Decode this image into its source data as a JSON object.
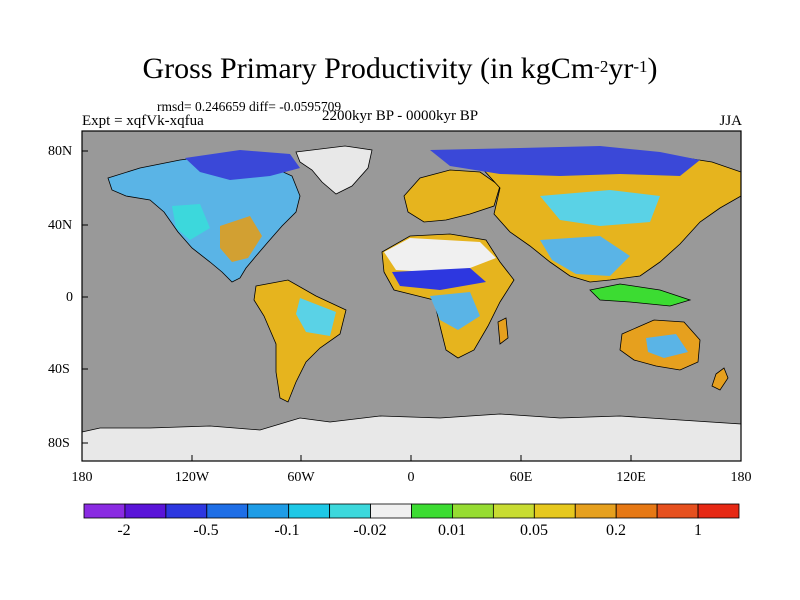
{
  "header": {
    "title_main": "Gross Primary Productivity (in kgCm",
    "title_exp1": "-2",
    "title_mid": "yr",
    "title_exp2": "-1",
    "title_end": ")",
    "stats": "rmsd= 0.246659 diff= -0.0595709",
    "experiment": "Expt = xqfVk-xqfua",
    "period": "2200kyr BP - 0000kyr BP",
    "season": "JJA"
  },
  "axes": {
    "lat_ticks": [
      "80N",
      "40N",
      "0",
      "40S",
      "80S"
    ],
    "lon_ticks": [
      "180",
      "120W",
      "60W",
      "0",
      "60E",
      "120E",
      "180"
    ]
  },
  "colors": {
    "ocean": "#999999",
    "ice": "#e8e8e8",
    "coast": "#000000"
  },
  "colorbar": {
    "colors": [
      "#8a2be2",
      "#5a14d8",
      "#2d37e0",
      "#1e6ee6",
      "#1e9ce6",
      "#1ec8e6",
      "#3cd8dc",
      "#f0f0f0",
      "#3cdc32",
      "#96dc32",
      "#c8dc32",
      "#e6c81e",
      "#e6a01e",
      "#e67814",
      "#e6501e",
      "#e62814"
    ],
    "labels": [
      "-2",
      "-0.5",
      "-0.1",
      "-0.02",
      "0.01",
      "0.05",
      "0.2",
      "1"
    ]
  }
}
